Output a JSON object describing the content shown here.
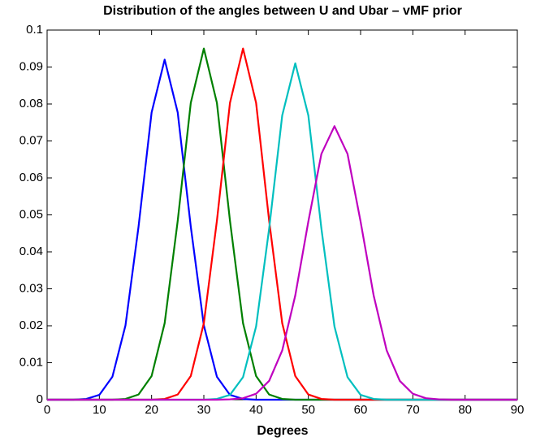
{
  "chart_data": {
    "type": "line",
    "title": "Distribution of the angles between U and Ubar – vMF prior",
    "x_label": "Degrees",
    "x": [
      0,
      2.5,
      5,
      7.5,
      10,
      12.5,
      15,
      17.5,
      20,
      22.5,
      25,
      27.5,
      30,
      32.5,
      35,
      37.5,
      40,
      42.5,
      45,
      47.5,
      50,
      52.5,
      55,
      57.5,
      60,
      62.5,
      65,
      67.5,
      70,
      72.5,
      75,
      77.5,
      80,
      82.5,
      85,
      87.5,
      90
    ],
    "series": [
      {
        "color": "#0000ff",
        "values": [
          0,
          0,
          0,
          0.0002,
          0.0013,
          0.0062,
          0.0201,
          0.0468,
          0.0777,
          0.092,
          0.0777,
          0.0468,
          0.0201,
          0.0062,
          0.0013,
          0.0002,
          0,
          0,
          0,
          0,
          0,
          0,
          0,
          0,
          0,
          0,
          0,
          0,
          0,
          0,
          0,
          0,
          0,
          0,
          0,
          0,
          0
        ]
      },
      {
        "color": "#008000",
        "values": [
          0,
          0,
          0,
          0,
          0,
          0,
          0.0002,
          0.0014,
          0.0064,
          0.0207,
          0.0484,
          0.0803,
          0.095,
          0.0803,
          0.0484,
          0.0207,
          0.0064,
          0.0014,
          0.0002,
          0,
          0,
          0,
          0,
          0,
          0,
          0,
          0,
          0,
          0,
          0,
          0,
          0,
          0,
          0,
          0,
          0,
          0
        ]
      },
      {
        "color": "#ff0000",
        "values": [
          0,
          0,
          0,
          0,
          0,
          0,
          0,
          0,
          0,
          0.0002,
          0.0014,
          0.0064,
          0.0207,
          0.0484,
          0.0803,
          0.095,
          0.0803,
          0.0484,
          0.0207,
          0.0064,
          0.0014,
          0.0002,
          0,
          0,
          0,
          0,
          0,
          0,
          0,
          0,
          0,
          0,
          0,
          0,
          0,
          0,
          0
        ]
      },
      {
        "color": "#00bfbf",
        "values": [
          0,
          0,
          0,
          0,
          0,
          0,
          0,
          0,
          0,
          0,
          0,
          0,
          0,
          0.0002,
          0.0013,
          0.0061,
          0.0198,
          0.0463,
          0.0769,
          0.091,
          0.0769,
          0.0463,
          0.0198,
          0.0061,
          0.0013,
          0.0002,
          0,
          0,
          0,
          0,
          0,
          0,
          0,
          0,
          0,
          0,
          0
        ]
      },
      {
        "color": "#bf00bf",
        "values": [
          0,
          0,
          0,
          0,
          0,
          0,
          0,
          0,
          0,
          0,
          0,
          0,
          0,
          0,
          0.0001,
          0.0004,
          0.0016,
          0.0051,
          0.0133,
          0.0282,
          0.0482,
          0.0665,
          0.074,
          0.0665,
          0.0482,
          0.0282,
          0.0133,
          0.0051,
          0.0016,
          0.0004,
          0.0001,
          0,
          0,
          0,
          0,
          0,
          0
        ]
      }
    ],
    "xlim": [
      0,
      90
    ],
    "xticks": [
      0,
      10,
      20,
      30,
      40,
      50,
      60,
      70,
      80,
      90
    ],
    "ylim": [
      0,
      0.1
    ],
    "yticks": [
      0,
      0.01,
      0.02,
      0.03,
      0.04,
      0.05,
      0.06,
      0.07,
      0.08,
      0.09,
      0.1
    ]
  }
}
